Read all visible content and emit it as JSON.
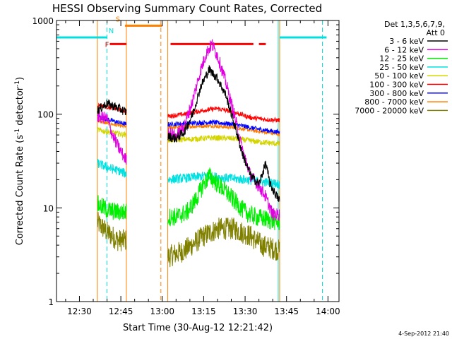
{
  "chart_data": {
    "type": "line",
    "title": "HESSI Observing Summary Count Rates, Corrected",
    "xlabel": "Start Time (30-Aug-12 12:21:42)",
    "ylabel": "Corrected Count Rate (s⁻¹ detector⁻¹)",
    "ylabel_parts": [
      "Corrected Count Rate (s",
      "-1",
      " detector",
      "-1",
      ")"
    ],
    "footer": "4-Sep-2012 21:40",
    "yscale": "log",
    "ylim": [
      1,
      1000
    ],
    "xlim": [
      "12:21:42",
      "14:04:00"
    ],
    "xticks": [
      "12:30",
      "12:45",
      "13:00",
      "13:15",
      "13:30",
      "13:45",
      "14:00"
    ],
    "yticks": [
      "1",
      "10",
      "100",
      "1000"
    ],
    "legend": {
      "position": "top-right",
      "header": [
        "Det 1,3,5,6,7,9,",
        "Att 0"
      ],
      "entries": [
        {
          "name": "3 - 6 keV",
          "color": "#000000"
        },
        {
          "name": "6 - 12 keV",
          "color": "#e000e0"
        },
        {
          "name": "12 - 25 keV",
          "color": "#00ee00"
        },
        {
          "name": "25 - 50 keV",
          "color": "#00e0e0"
        },
        {
          "name": "50 - 100 keV",
          "color": "#d4d400"
        },
        {
          "name": "100 - 300 keV",
          "color": "#ff0000"
        },
        {
          "name": "300 - 800 keV",
          "color": "#0000ff"
        },
        {
          "name": "800 - 7000 keV",
          "color": "#ff8000"
        },
        {
          "name": "7000 - 20000 keV",
          "color": "#808000"
        }
      ]
    },
    "flag_bars": [
      {
        "label": "N",
        "color": "#00e0e0",
        "level": 660,
        "segments": [
          [
            "12:21:42",
            "12:40:00"
          ],
          [
            "13:42:30",
            "13:59:30"
          ]
        ]
      },
      {
        "label": "S",
        "color": "#ff8000",
        "level": 880,
        "segments": [
          [
            "12:46:30",
            "13:00:00"
          ]
        ]
      },
      {
        "label": "F",
        "color": "#ff0000",
        "level": 560,
        "segments": [
          [
            "12:41:00",
            "12:47:00"
          ],
          [
            "13:03:00",
            "13:33:00"
          ],
          [
            "13:35:00",
            "13:37:30"
          ]
        ]
      }
    ],
    "vlines": [
      {
        "time": "12:40:00",
        "color": "#00e0e0",
        "style": "dashed"
      },
      {
        "time": "12:59:30",
        "color": "#ff8000",
        "style": "dashed"
      },
      {
        "time": "13:58:00",
        "color": "#00e0e0",
        "style": "dashed"
      }
    ],
    "segments": [
      [
        "12:36:30",
        "12:47:00"
      ],
      [
        "13:02:00",
        "13:42:30"
      ]
    ],
    "segment_edges": [
      {
        "time": "12:36:30",
        "color": "#ff8000"
      },
      {
        "time": "12:47:00",
        "color": "#ff8000"
      },
      {
        "time": "13:02:00",
        "color": "#ff8000"
      },
      {
        "time": "13:42:30",
        "color": "#ff8000"
      },
      {
        "time": "12:21:42",
        "color": "#00e0e0"
      },
      {
        "time": "13:42:00",
        "color": "#00e0e0"
      }
    ],
    "series": [
      {
        "name": "3 - 6 keV",
        "color": "#000000",
        "noise": 0.05,
        "points": [
          [
            "12:36:30",
            110
          ],
          [
            "12:40:00",
            130
          ],
          [
            "12:43:00",
            120
          ],
          [
            "12:47:00",
            105
          ],
          [
            "13:02:00",
            58
          ],
          [
            "13:05:00",
            55
          ],
          [
            "13:08:00",
            65
          ],
          [
            "13:11:00",
            100
          ],
          [
            "13:14:00",
            200
          ],
          [
            "13:17:00",
            300
          ],
          [
            "13:20:00",
            240
          ],
          [
            "13:23:00",
            160
          ],
          [
            "13:26:00",
            80
          ],
          [
            "13:29:00",
            38
          ],
          [
            "13:32:00",
            22
          ],
          [
            "13:35:00",
            18
          ],
          [
            "13:37:30",
            30
          ],
          [
            "13:39:00",
            18
          ],
          [
            "13:41:00",
            14
          ],
          [
            "13:42:30",
            12
          ]
        ]
      },
      {
        "name": "6 - 12 keV",
        "color": "#e000e0",
        "noise": 0.07,
        "points": [
          [
            "12:36:30",
            95
          ],
          [
            "12:40:00",
            90
          ],
          [
            "12:42:00",
            60
          ],
          [
            "12:44:00",
            45
          ],
          [
            "12:47:00",
            32
          ],
          [
            "13:02:00",
            65
          ],
          [
            "13:05:00",
            58
          ],
          [
            "13:08:00",
            75
          ],
          [
            "13:11:00",
            140
          ],
          [
            "13:14:00",
            300
          ],
          [
            "13:16:00",
            450
          ],
          [
            "13:18:00",
            560
          ],
          [
            "13:20:00",
            420
          ],
          [
            "13:23:00",
            220
          ],
          [
            "13:26:00",
            100
          ],
          [
            "13:29:00",
            42
          ],
          [
            "13:32:00",
            22
          ],
          [
            "13:35:00",
            17
          ],
          [
            "13:37:00",
            14
          ],
          [
            "13:40:00",
            8.5
          ],
          [
            "13:42:30",
            8.5
          ]
        ]
      },
      {
        "name": "12 - 25 keV",
        "color": "#00ee00",
        "noise": 0.1,
        "points": [
          [
            "12:36:30",
            11
          ],
          [
            "12:40:00",
            9.5
          ],
          [
            "12:44:00",
            9
          ],
          [
            "12:47:00",
            9
          ],
          [
            "13:02:00",
            8
          ],
          [
            "13:05:00",
            8
          ],
          [
            "13:09:00",
            9
          ],
          [
            "13:12:00",
            12
          ],
          [
            "13:15:00",
            18
          ],
          [
            "13:17:00",
            22
          ],
          [
            "13:20:00",
            18
          ],
          [
            "13:23:00",
            15
          ],
          [
            "13:26:00",
            12
          ],
          [
            "13:30:00",
            9
          ],
          [
            "13:34:00",
            8
          ],
          [
            "13:38:00",
            7.5
          ],
          [
            "13:42:30",
            7
          ]
        ]
      },
      {
        "name": "25 - 50 keV",
        "color": "#00e0e0",
        "noise": 0.05,
        "points": [
          [
            "12:36:30",
            30
          ],
          [
            "12:40:00",
            27
          ],
          [
            "12:44:00",
            25
          ],
          [
            "12:47:00",
            23
          ],
          [
            "13:02:00",
            20
          ],
          [
            "13:10:00",
            21
          ],
          [
            "13:16:00",
            22
          ],
          [
            "13:22:00",
            21
          ],
          [
            "13:30:00",
            20
          ],
          [
            "13:36:00",
            19
          ],
          [
            "13:42:30",
            18
          ]
        ]
      },
      {
        "name": "50 - 100 keV",
        "color": "#d4d400",
        "noise": 0.03,
        "points": [
          [
            "12:36:30",
            68
          ],
          [
            "12:40:00",
            65
          ],
          [
            "12:44:00",
            62
          ],
          [
            "12:47:00",
            60
          ],
          [
            "13:02:00",
            53
          ],
          [
            "13:10:00",
            54
          ],
          [
            "13:18:00",
            56
          ],
          [
            "13:26:00",
            55
          ],
          [
            "13:34:00",
            51
          ],
          [
            "13:42:30",
            48
          ]
        ]
      },
      {
        "name": "100 - 300 keV",
        "color": "#ff0000",
        "noise": 0.025,
        "points": [
          [
            "12:36:30",
            125
          ],
          [
            "12:40:00",
            120
          ],
          [
            "12:44:00",
            112
          ],
          [
            "12:47:00",
            108
          ],
          [
            "13:02:00",
            95
          ],
          [
            "13:08:00",
            100
          ],
          [
            "13:15:00",
            110
          ],
          [
            "13:20:00",
            115
          ],
          [
            "13:26:00",
            105
          ],
          [
            "13:32:00",
            92
          ],
          [
            "13:37:00",
            88
          ],
          [
            "13:42:30",
            86
          ]
        ]
      },
      {
        "name": "300 - 800 keV",
        "color": "#0000ff",
        "noise": 0.025,
        "points": [
          [
            "12:36:30",
            95
          ],
          [
            "12:40:00",
            88
          ],
          [
            "12:44:00",
            82
          ],
          [
            "12:47:00",
            78
          ],
          [
            "13:02:00",
            78
          ],
          [
            "13:10:00",
            80
          ],
          [
            "13:18:00",
            82
          ],
          [
            "13:26:00",
            78
          ],
          [
            "13:34:00",
            70
          ],
          [
            "13:42:30",
            64
          ]
        ]
      },
      {
        "name": "800 - 7000 keV",
        "color": "#ff8000",
        "noise": 0.02,
        "points": [
          [
            "12:36:30",
            85
          ],
          [
            "12:40:00",
            80
          ],
          [
            "12:44:00",
            76
          ],
          [
            "12:47:00",
            73
          ],
          [
            "13:02:00",
            72
          ],
          [
            "13:10:00",
            74
          ],
          [
            "13:18:00",
            75
          ],
          [
            "13:26:00",
            72
          ],
          [
            "13:34:00",
            66
          ],
          [
            "13:42:30",
            61
          ]
        ]
      },
      {
        "name": "7000 - 20000 keV",
        "color": "#808000",
        "noise": 0.12,
        "points": [
          [
            "12:36:30",
            7
          ],
          [
            "12:40:00",
            5.5
          ],
          [
            "12:44:00",
            4.5
          ],
          [
            "12:47:00",
            4.5
          ],
          [
            "13:02:00",
            3
          ],
          [
            "13:08:00",
            3.5
          ],
          [
            "13:15:00",
            5
          ],
          [
            "13:20:00",
            6
          ],
          [
            "13:26:00",
            6
          ],
          [
            "13:32:00",
            5
          ],
          [
            "13:36:00",
            4
          ],
          [
            "13:42:30",
            3.5
          ]
        ]
      }
    ]
  }
}
